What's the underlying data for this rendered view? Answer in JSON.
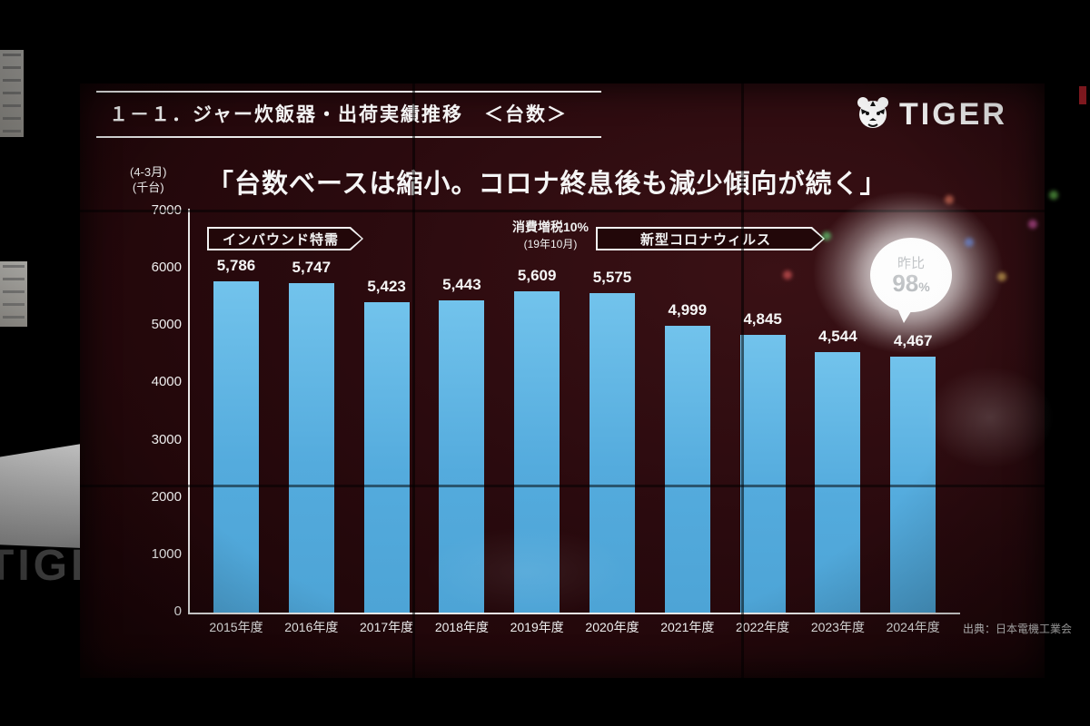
{
  "photo": {
    "wall_sign_text": "TIGER"
  },
  "slide": {
    "header": {
      "title": "１－１．ジャー炊飯器・出荷実績推移　＜台数＞"
    },
    "logo": {
      "brand": "TIGER",
      "icon": "tiger-face-icon"
    },
    "headline": "「台数ベースは縮小。コロナ終息後も減少傾向が続く」",
    "unit_note": {
      "line1": "(4-3月)",
      "line2": "(千台)"
    },
    "annotations": {
      "inbound": "インバウンド特需",
      "tax_line1": "消費増税10%",
      "tax_line2": "(19年10月)",
      "corona": "新型コロナウィルス",
      "bubble_label": "昨比",
      "bubble_value": "98",
      "bubble_percent": "%"
    },
    "source": "出典：日本電機工業会"
  },
  "chart_data": {
    "type": "bar",
    "title": "ジャー炊飯器・出荷実績推移　＜台数＞",
    "categories": [
      "2015年度",
      "2016年度",
      "2017年度",
      "2018年度",
      "2019年度",
      "2020年度",
      "2021年度",
      "2022年度",
      "2023年度",
      "2024年度"
    ],
    "values": [
      5786,
      5747,
      5423,
      5443,
      5609,
      5575,
      4999,
      4845,
      4544,
      4467
    ],
    "value_labels": [
      "5,786",
      "5,747",
      "5,423",
      "5,443",
      "5,609",
      "5,575",
      "4,999",
      "4,845",
      "4,544",
      "4,467"
    ],
    "xlabel": "年度",
    "ylabel": "千台",
    "ylim": [
      0,
      7000
    ],
    "yticks": [
      0,
      1000,
      2000,
      3000,
      4000,
      5000,
      6000,
      7000
    ],
    "grid": false,
    "legend": "none",
    "bar_color": "#54abdd",
    "annotation_texts": [
      "インバウンド特需",
      "消費増税10% (19年10月)",
      "新型コロナウィルス",
      "昨比98%"
    ]
  }
}
